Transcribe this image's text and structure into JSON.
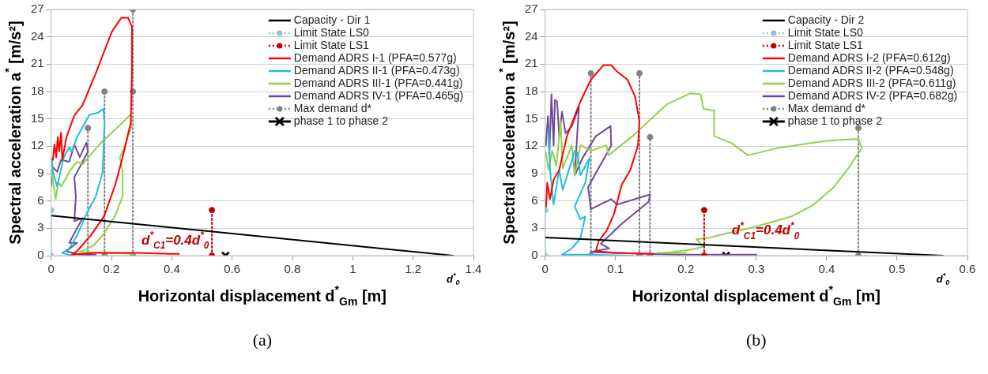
{
  "chart_data": [
    {
      "type": "line",
      "xlabel": "Horizontal displacement d$^{*}$$_{Gm}$ [m]",
      "ylabel": "Spectral acceleration a$^{*}$ [m/s²]",
      "xlim": [
        0,
        1.4
      ],
      "xticks": [
        0,
        0.2,
        0.4,
        0.6,
        0.8,
        1,
        1.2,
        1.4
      ],
      "ylim": [
        0,
        27
      ],
      "yticks": [
        0,
        3,
        6,
        9,
        12,
        15,
        18,
        21,
        24,
        27
      ],
      "grid": "y",
      "legend": "top right",
      "annotations": [
        "d$^{*}$$_{C1}$=0.4d$^{*}$$_{0}$",
        "d$^{*}$$_{0}$",
        "(a)"
      ],
      "series": [
        {
          "name": "Capacity - Dir 1",
          "color": "#000000",
          "type": "line",
          "marker": "none",
          "line_style": "solid",
          "x": [
            0,
            1.333
          ],
          "values": [
            4.4,
            0
          ]
        },
        {
          "name": "Limit State LS0",
          "color": "#8fc3dc",
          "type": "line",
          "marker": "circle",
          "line_style": "dotted",
          "x": [
            0,
            0
          ],
          "values": [
            0,
            5
          ]
        },
        {
          "name": "Limit State LS1",
          "color": "#c00000",
          "type": "line",
          "marker": "circle",
          "line_style": "dotted",
          "x": [
            0.533,
            0.533
          ],
          "values": [
            0,
            5
          ]
        },
        {
          "name": "Demand ADRS I-1 (PFA=0.577g)",
          "color": "#ff0000",
          "type": "line",
          "marker": "none",
          "line_style": "solid",
          "x": [
            0.006,
            0.011,
            0.017,
            0.022,
            0.027,
            0.033,
            0.037,
            0.051,
            0.077,
            0.104,
            0.148,
            0.202,
            0.233,
            0.255,
            0.268,
            0.268,
            0.264,
            0.237,
            0.211,
            0.175,
            0.131,
            0.086,
            0.068,
            0.148,
            0.282,
            0.397,
            0.424
          ],
          "values": [
            10.5,
            12.2,
            10.8,
            13,
            11.4,
            13.5,
            10.5,
            13,
            15.4,
            16.5,
            20,
            24.6,
            26.1,
            26.1,
            25.1,
            20,
            14.6,
            10.8,
            7.6,
            4.3,
            2.2,
            0.5,
            0.1,
            0.3,
            0.3,
            0.2,
            0.2
          ]
        },
        {
          "name": "Demand ADRS II-1 (PFA=0.473g)",
          "color": "#1fbfdf",
          "type": "line",
          "marker": "none",
          "line_style": "solid",
          "x": [
            0.002,
            0.006,
            0.02,
            0.042,
            0.06,
            0.068,
            0.086,
            0.126,
            0.157,
            0.173,
            0.177,
            0.171,
            0.148,
            0.113,
            0.086,
            0.06,
            0.037,
            0.068
          ],
          "values": [
            10.7,
            9.2,
            7.6,
            10.8,
            11.9,
            11.4,
            13,
            15.4,
            15.7,
            16.1,
            14.6,
            9.2,
            6.5,
            4.3,
            2.2,
            0.8,
            0.3,
            0
          ]
        },
        {
          "name": "Demand ADRS III-1 (PFA=0.441g)",
          "color": "#92d050",
          "type": "line",
          "marker": "none",
          "line_style": "solid",
          "x": [
            0.002,
            0.015,
            0.024,
            0.033,
            0.051,
            0.06,
            0.086,
            0.104,
            0.166,
            0.237,
            0.264,
            0.268,
            0.237,
            0.228,
            0.237,
            0.237,
            0.211,
            0.175,
            0.14,
            0.095,
            0.193,
            0.273
          ],
          "values": [
            9.2,
            6.2,
            8.1,
            7.6,
            8.6,
            9.2,
            10.3,
            10,
            12.4,
            14.6,
            15.5,
            14.3,
            11.4,
            10.8,
            9.2,
            6.5,
            4.3,
            2.4,
            1.1,
            0.4,
            0.3,
            0.2
          ]
        },
        {
          "name": "Demand ADRS IV-1 (PFA=0.465g)",
          "color": "#6f4a98",
          "type": "line",
          "marker": "none",
          "line_style": "solid",
          "x": [
            0,
            0.006,
            0.02,
            0.033,
            0.06,
            0.077,
            0.095,
            0.117,
            0.122,
            0.077,
            0.082,
            0.077,
            0.104,
            0.06,
            0.086,
            0.051,
            0.095,
            0.148
          ],
          "values": [
            7.6,
            9.7,
            9.2,
            10.5,
            10.3,
            12.2,
            10.8,
            12.4,
            11.4,
            8.6,
            6.5,
            3.8,
            4.1,
            1.4,
            1.4,
            0.5,
            0.1,
            0.1
          ]
        },
        {
          "name": "Max demand d*",
          "color": "#808080",
          "type": "line",
          "marker": "circle",
          "line_style": "dotted",
          "x": [
            0.122,
            0.122,
            null,
            0.177,
            0.177,
            null,
            0.271,
            0.271,
            0.271
          ],
          "values": [
            0,
            14,
            null,
            0,
            18,
            null,
            0,
            18,
            27
          ]
        },
        {
          "name": "phase 1 to phase 2",
          "color": "#000000",
          "type": "scatter",
          "marker": "cross",
          "x": [
            0.578
          ],
          "values": [
            0
          ]
        }
      ]
    },
    {
      "type": "line",
      "xlabel": "Horizontal displacement d$^{*}$$_{Gm}$ [m]",
      "ylabel": "Spectral acceleration a$^{*}$ [m/s²]",
      "xlim": [
        0,
        0.6
      ],
      "xticks": [
        0,
        0.1,
        0.2,
        0.3,
        0.4,
        0.5,
        0.6
      ],
      "ylim": [
        0,
        27
      ],
      "yticks": [
        0,
        3,
        6,
        9,
        12,
        15,
        18,
        21,
        24,
        27
      ],
      "grid": "y",
      "legend": "top right",
      "annotations": [
        "d$^{*}$$_{C1}$=0.4d$^{*}$$_{0}$",
        "d$^{*}$$_{0}$",
        "(b)"
      ],
      "series": [
        {
          "name": "Capacity - Dir 2",
          "color": "#000000",
          "type": "line",
          "marker": "none",
          "line_style": "solid",
          "x": [
            0,
            0.565
          ],
          "values": [
            2,
            0
          ]
        },
        {
          "name": "Limit State LS0",
          "color": "#8fc3dc",
          "type": "line",
          "marker": "circle",
          "line_style": "dotted",
          "x": [
            0,
            0
          ],
          "values": [
            0,
            5
          ]
        },
        {
          "name": "Limit State LS1",
          "color": "#c00000",
          "type": "line",
          "marker": "circle",
          "line_style": "dotted",
          "x": [
            0.226,
            0.226
          ],
          "values": [
            0,
            5
          ]
        },
        {
          "name": "Demand ADRS I-2 (PFA=0.612g)",
          "color": "#ff0000",
          "type": "line",
          "marker": "none",
          "line_style": "solid",
          "x": [
            0.001,
            0.003,
            0.007,
            0.012,
            0.02,
            0.031,
            0.05,
            0.065,
            0.083,
            0.094,
            0.102,
            0.117,
            0.128,
            0.134,
            0.132,
            0.121,
            0.109,
            0.098,
            0.087,
            0.076,
            0.072,
            0.098,
            0.154
          ],
          "values": [
            4.8,
            8,
            6.2,
            8.3,
            9.4,
            13.1,
            16.9,
            19.3,
            20.9,
            20.9,
            20.2,
            19.3,
            17.4,
            14.7,
            12.1,
            9.4,
            7.8,
            4.6,
            2.7,
            1.6,
            0.5,
            0.3,
            0.2
          ]
        },
        {
          "name": "Demand ADRS II-2 (PFA=0.548g)",
          "color": "#1fbfdf",
          "type": "line",
          "marker": "none",
          "line_style": "solid",
          "x": [
            0.005,
            0.007,
            0.012,
            0.02,
            0.025,
            0.042,
            0.046,
            0.05,
            0.063,
            0.057,
            0.042,
            0.05,
            0.057,
            0.05,
            0.038,
            0.024,
            0.061,
            0.124
          ],
          "values": [
            13.9,
            9.4,
            5.6,
            9.4,
            7.2,
            11.5,
            11.3,
            8.8,
            10.7,
            8,
            5.4,
            4,
            4.3,
            1.9,
            0.8,
            0.1,
            0.1,
            0
          ]
        },
        {
          "name": "Demand ADRS III-2 (PFA=0.611g)",
          "color": "#92d050",
          "type": "line",
          "marker": "none",
          "line_style": "solid",
          "x": [
            0.001,
            0.005,
            0.01,
            0.016,
            0.022,
            0.025,
            0.038,
            0.042,
            0.05,
            0.065,
            0.087,
            0.09,
            0.124,
            0.173,
            0.206,
            0.221,
            0.225,
            0.24,
            0.24,
            0.266,
            0.288,
            0.33,
            0.4,
            0.445,
            0.45,
            0.43,
            0.41,
            0.38,
            0.35,
            0.3,
            0.25,
            0.235,
            0.215,
            0.225,
            0.21,
            0.18,
            0.16,
            0.2
          ],
          "values": [
            11.3,
            9.4,
            11.5,
            9.9,
            14.7,
            9.6,
            12.1,
            8.8,
            12.1,
            11.5,
            12.1,
            11,
            13.1,
            16.6,
            17.8,
            17.7,
            16.1,
            15.9,
            13.1,
            12.3,
            11,
            11.8,
            12.6,
            12.8,
            11.8,
            9.5,
            7.5,
            5.5,
            4.3,
            3.2,
            2.3,
            2,
            1.8,
            1,
            0.7,
            0.4,
            0.3,
            0.3
          ]
        },
        {
          "name": "Demand ADRS IV-2 (PFA=0.682g)",
          "color": "#6f4a98",
          "type": "line",
          "marker": "none",
          "line_style": "solid",
          "x": [
            0.001,
            0.004,
            0.006,
            0.009,
            0.012,
            0.014,
            0.017,
            0.02,
            0.024,
            0.029,
            0.038,
            0.048,
            0.042,
            0.053,
            0.072,
            0.093,
            0.094,
            0.061,
            0.065,
            0.094,
            0.102,
            0.149,
            0.147,
            0.109,
            0.079,
            0.091,
            0.065,
            0.098,
            0.191,
            0.3
          ],
          "values": [
            12.1,
            15.3,
            11,
            17.7,
            12.1,
            17.1,
            16.9,
            13.1,
            15.8,
            13.4,
            14.2,
            16.3,
            8.8,
            10.7,
            13.1,
            14.2,
            12.1,
            7.5,
            5.1,
            6.2,
            5.6,
            6.7,
            5.9,
            3.5,
            1.3,
            0.8,
            0.4,
            0.3,
            0.1,
            0.1
          ]
        },
        {
          "name": "Max demand d*",
          "color": "#808080",
          "type": "line",
          "marker": "circle",
          "line_style": "dotted",
          "x": [
            0.065,
            0.065,
            null,
            0.134,
            0.134,
            null,
            0.149,
            0.149,
            null,
            0.445,
            0.445
          ],
          "values": [
            0,
            20,
            null,
            0,
            20,
            null,
            0,
            13,
            null,
            0,
            14
          ]
        },
        {
          "name": "phase 1 to phase 2",
          "color": "#000000",
          "type": "scatter",
          "marker": "cross",
          "x": [
            0.257
          ],
          "values": [
            0
          ]
        }
      ]
    }
  ]
}
